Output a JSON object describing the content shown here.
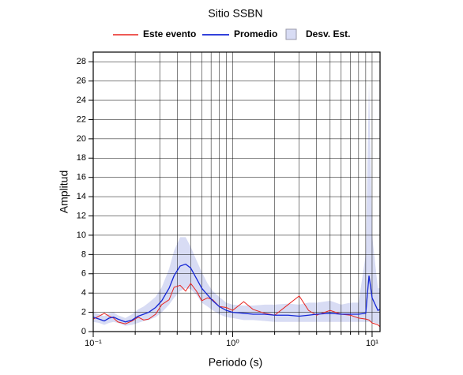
{
  "chart_data": {
    "type": "line",
    "title": "Sitio SSBN",
    "xlabel": "Periodo (s)",
    "ylabel": "Amplitud",
    "xscale": "log",
    "grid": true,
    "xlim": [
      0.1,
      11.4
    ],
    "ylim": [
      0,
      29
    ],
    "xticks": [
      {
        "value": 0.1,
        "label": "10⁻¹"
      },
      {
        "value": 1,
        "label": "10⁰"
      },
      {
        "value": 10,
        "label": "10¹"
      }
    ],
    "xminorticks": [
      0.2,
      0.3,
      0.4,
      0.5,
      0.6,
      0.7,
      0.8,
      0.9,
      2,
      3,
      4,
      5,
      6,
      7,
      8,
      9
    ],
    "yticks": [
      0,
      2,
      4,
      6,
      8,
      10,
      12,
      14,
      16,
      18,
      20,
      22,
      24,
      26,
      28
    ],
    "x": [
      0.1,
      0.11,
      0.12,
      0.13,
      0.14,
      0.15,
      0.17,
      0.19,
      0.21,
      0.23,
      0.25,
      0.28,
      0.31,
      0.35,
      0.38,
      0.42,
      0.46,
      0.5,
      0.55,
      0.6,
      0.66,
      0.72,
      0.8,
      0.9,
      1.0,
      1.2,
      1.4,
      1.7,
      2.0,
      2.5,
      3.0,
      3.5,
      4.0,
      5.0,
      6.0,
      7.0,
      8.0,
      9.0,
      9.5,
      10.0,
      11.0,
      11.4
    ],
    "band": {
      "name": "Desv. Est.",
      "color": "#d8dcf4",
      "upper": [
        2.0,
        1.8,
        1.6,
        1.9,
        2.0,
        1.7,
        1.4,
        1.8,
        2.3,
        2.6,
        3.0,
        3.6,
        4.6,
        6.5,
        8.4,
        9.8,
        9.8,
        8.8,
        7.4,
        6.2,
        5.0,
        4.2,
        3.6,
        3.0,
        2.8,
        2.7,
        2.7,
        2.8,
        2.8,
        2.9,
        2.8,
        3.0,
        3.0,
        3.2,
        2.8,
        3.0,
        3.0,
        8,
        26,
        10,
        4.5,
        4.5
      ],
      "lower": [
        1.0,
        0.9,
        0.7,
        0.9,
        1.0,
        0.9,
        0.6,
        0.7,
        0.9,
        1.1,
        1.2,
        1.5,
        2.0,
        2.8,
        3.5,
        4.2,
        4.5,
        4.4,
        3.8,
        3.0,
        2.6,
        2.2,
        1.8,
        1.5,
        1.4,
        1.2,
        1.2,
        1.1,
        1.0,
        1.0,
        1.0,
        1.0,
        1.0,
        1.0,
        1.0,
        1.0,
        1.0,
        1.0,
        1.0,
        1.0,
        0.8,
        0.8
      ]
    },
    "series": [
      {
        "name": "Este evento",
        "color": "#e8231f",
        "values": [
          1.3,
          1.6,
          1.9,
          1.6,
          1.4,
          1.0,
          0.8,
          1.1,
          1.5,
          1.2,
          1.3,
          1.8,
          2.8,
          3.3,
          4.6,
          4.8,
          4.2,
          5.0,
          4.2,
          3.2,
          3.5,
          3.3,
          2.6,
          2.5,
          2.2,
          3.1,
          2.3,
          1.9,
          1.7,
          2.8,
          3.7,
          2.2,
          1.7,
          2.2,
          1.8,
          1.7,
          1.4,
          1.3,
          1.2,
          0.9,
          0.7,
          0.5
        ]
      },
      {
        "name": "Promedio",
        "color": "#1426d6",
        "values": [
          1.5,
          1.3,
          1.1,
          1.4,
          1.5,
          1.3,
          1.0,
          1.2,
          1.6,
          1.8,
          2.0,
          2.5,
          3.2,
          4.5,
          5.8,
          6.8,
          7.0,
          6.6,
          5.5,
          4.5,
          3.8,
          3.2,
          2.6,
          2.2,
          2.0,
          1.9,
          1.8,
          1.8,
          1.7,
          1.7,
          1.6,
          1.7,
          1.8,
          1.9,
          1.8,
          1.8,
          1.8,
          1.9,
          5.8,
          3.5,
          2.2,
          2.3
        ]
      }
    ]
  }
}
